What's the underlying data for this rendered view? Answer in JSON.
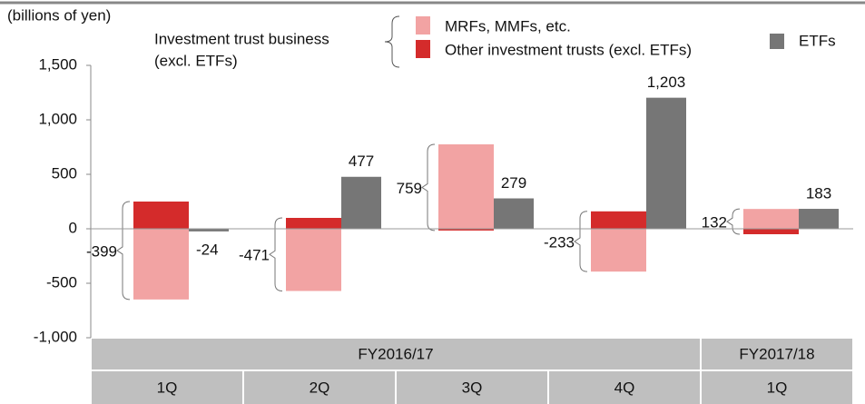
{
  "chart_data": {
    "type": "bar",
    "unit_label": "(billions of yen)",
    "group_label": [
      "Investment trust business",
      "(excl. ETFs)"
    ],
    "fiscal_years": [
      "FY2016/17",
      "FY2017/18"
    ],
    "categories": [
      "1Q",
      "2Q",
      "3Q",
      "4Q",
      "1Q"
    ],
    "series": [
      {
        "name": "MRFs, MMFs, etc.",
        "color": "#f2a3a3",
        "values": [
          -649,
          -571,
          775,
          -393,
          182
        ]
      },
      {
        "name": "Other investment trusts (excl. ETFs)",
        "color": "#d42b2b",
        "values": [
          250,
          100,
          -16,
          160,
          -50
        ]
      },
      {
        "name": "ETFs",
        "color": "#767676",
        "values": [
          -24,
          477,
          279,
          1203,
          183
        ]
      }
    ],
    "etf_value_labels": [
      "-24",
      "477",
      "279",
      "1,203",
      "183"
    ],
    "net_values": [
      -399,
      -471,
      759,
      -233,
      132
    ],
    "ylim": [
      -1000,
      1500
    ],
    "yticks": [
      {
        "value": -1000,
        "label": "-1,000"
      },
      -500,
      0,
      500,
      {
        "value": 1000,
        "label": "1,000"
      },
      {
        "value": 1500,
        "label": "1,500"
      }
    ]
  }
}
